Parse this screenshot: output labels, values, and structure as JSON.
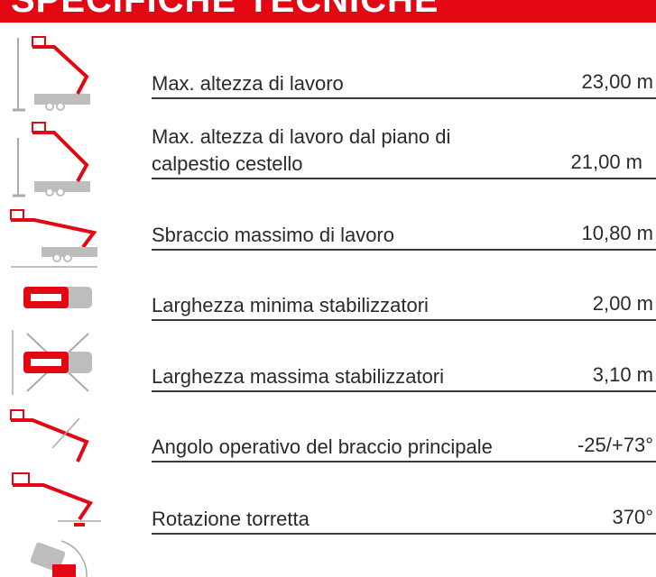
{
  "header": {
    "title": "SPECIFICHE TECNICHE"
  },
  "specs": [
    {
      "label": "Max. altezza di lavoro",
      "value": "23,00 m",
      "icon": "height-lift-icon"
    },
    {
      "label_line1": "Max. altezza di lavoro dal piano di",
      "label_line2": "calpestio cestello",
      "value": "21,00 m",
      "icon": "platform-height-icon"
    },
    {
      "label": "Sbraccio massimo di lavoro",
      "value": "10,80 m",
      "icon": "outreach-icon"
    },
    {
      "label": "Larghezza minima stabilizzatori",
      "value": "2,00 m",
      "icon": "min-outrigger-icon"
    },
    {
      "label": "Larghezza massima stabilizzatori",
      "value": "3,10 m",
      "icon": "max-outrigger-icon"
    },
    {
      "label": "Angolo operativo del braccio principale",
      "value": "-25/+73°",
      "icon": "boom-angle-icon"
    },
    {
      "label": "Rotazione torretta",
      "value": "370°",
      "icon": "turret-rotation-icon"
    }
  ],
  "colors": {
    "accent": "#e30613",
    "grey": "#bdbdbd",
    "text": "#2a2a2a"
  }
}
